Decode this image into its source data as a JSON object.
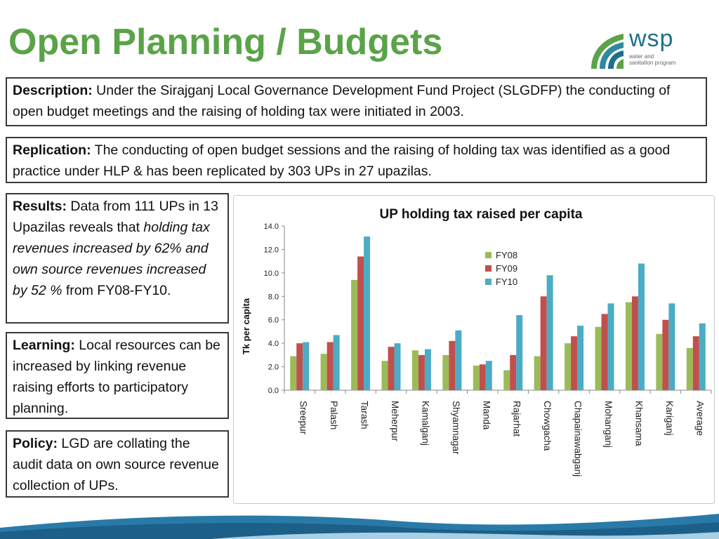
{
  "title": "Open Planning / Budgets",
  "logo": {
    "name": "wsp",
    "line1": "water and",
    "line2": "sanitation program"
  },
  "description": {
    "label": "Description:",
    "text": " Under the Sirajganj Local Governance Development Fund Project (SLGDFP) the conducting of open budget meetings and the raising of holding tax were initiated in 2003."
  },
  "replication": {
    "label": "Replication:",
    "text": "  The conducting of open budget sessions and the raising of holding tax was identified as a good practice under HLP & has been replicated by 303 UPs in 27 upazilas."
  },
  "results": {
    "label": "Results:",
    "text1": " Data from 111 UPs in 13 Upazilas reveals that ",
    "italic": "holding tax revenues increased by 62% and own source revenues increased by 52 %",
    "text2": " from FY08-FY10."
  },
  "learning": {
    "label": "Learning:",
    "text": " Local resources can be increased by linking revenue raising efforts to participatory planning."
  },
  "policy": {
    "label": "Policy:",
    "text": " LGD are collating the audit data on own source revenue collection of UPs."
  },
  "chart_data": {
    "type": "bar",
    "title": "UP holding tax raised per capita",
    "ylabel": "Tk per capita",
    "xlabel": "",
    "ylim": [
      0,
      14
    ],
    "yticks": [
      "0.0",
      "2.0",
      "4.0",
      "6.0",
      "8.0",
      "10.0",
      "12.0",
      "14.0"
    ],
    "legend_position": "top-right",
    "grid": false,
    "categories": [
      "Sreepur",
      "Palash",
      "Tarash",
      "Meherpur",
      "Kamalganj",
      "Shyamnagar",
      "Manda",
      "Rajarhat",
      "Chowgacha",
      "Chapainawabganj",
      "Mohanganj",
      "Khansama",
      "Kariganj",
      "Average"
    ],
    "series": [
      {
        "name": "FY08",
        "color": "#9bbb59",
        "values": [
          2.9,
          3.1,
          9.4,
          2.5,
          3.4,
          3.0,
          2.1,
          1.7,
          2.9,
          4.0,
          5.4,
          7.5,
          4.8,
          3.6
        ]
      },
      {
        "name": "FY09",
        "color": "#c0504d",
        "values": [
          4.0,
          4.1,
          11.4,
          3.7,
          3.0,
          4.2,
          2.2,
          3.0,
          8.0,
          4.6,
          6.5,
          8.0,
          6.0,
          4.6
        ]
      },
      {
        "name": "FY10",
        "color": "#4bacc6",
        "values": [
          4.1,
          4.7,
          13.1,
          4.0,
          3.5,
          5.1,
          2.5,
          6.4,
          9.8,
          5.5,
          7.4,
          10.8,
          7.4,
          5.7
        ]
      }
    ]
  }
}
